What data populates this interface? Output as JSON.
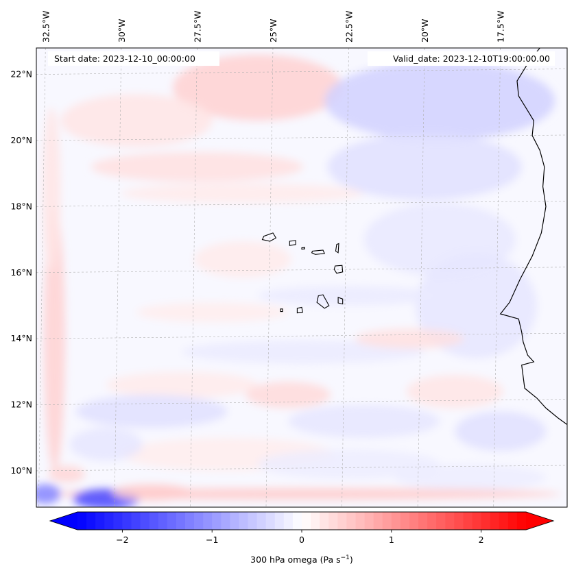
{
  "chart_data": {
    "type": "heatmap",
    "title": "",
    "start_date_label": "Start date: 2023-12-10_00:00:00",
    "valid_date_label": "Valid_date: 2023-12-10T19:00:00.00",
    "variable": "300 hPa omega",
    "units": "Pa s",
    "units_exponent": "−1",
    "colormap": "bwr",
    "value_range": [
      -2.5,
      2.5
    ],
    "extend": "both",
    "lon_ticks": [
      {
        "value": -32.5,
        "label": "32.5°W"
      },
      {
        "value": -30.0,
        "label": "30°W"
      },
      {
        "value": -27.5,
        "label": "27.5°W"
      },
      {
        "value": -25.0,
        "label": "25°W"
      },
      {
        "value": -22.5,
        "label": "22.5°W"
      },
      {
        "value": -20.0,
        "label": "20°W"
      },
      {
        "value": -17.5,
        "label": "17.5°W"
      }
    ],
    "lat_ticks": [
      {
        "value": 22,
        "label": "22°N"
      },
      {
        "value": 20,
        "label": "20°N"
      },
      {
        "value": 18,
        "label": "18°N"
      },
      {
        "value": 16,
        "label": "16°N"
      },
      {
        "value": 14,
        "label": "14°N"
      },
      {
        "value": 12,
        "label": "12°N"
      },
      {
        "value": 10,
        "label": "10°N"
      }
    ],
    "colorbar_ticks": [
      {
        "value": -2,
        "label": "−2"
      },
      {
        "value": -1,
        "label": "−1"
      },
      {
        "value": 0,
        "label": "0"
      },
      {
        "value": 1,
        "label": "1"
      },
      {
        "value": 2,
        "label": "2"
      }
    ],
    "lon_range": [
      -32.8,
      -15.3
    ],
    "lat_range": [
      8.9,
      22.8
    ],
    "field_blobs": [
      {
        "lon": -25.5,
        "lat": 21.6,
        "rlon": 2.8,
        "rlat": 1.0,
        "value": 0.45
      },
      {
        "lon": -29.5,
        "lat": 20.6,
        "rlon": 2.5,
        "rlat": 0.8,
        "value": 0.25
      },
      {
        "lon": -27.5,
        "lat": 19.2,
        "rlon": 3.5,
        "rlat": 0.45,
        "value": 0.3
      },
      {
        "lon": -26.0,
        "lat": 18.4,
        "rlon": 4.0,
        "rlat": 0.3,
        "value": 0.2
      },
      {
        "lon": -19.5,
        "lat": 21.2,
        "rlon": 3.8,
        "rlat": 1.2,
        "value": -0.45
      },
      {
        "lon": -20.0,
        "lat": 19.2,
        "rlon": 3.2,
        "rlat": 1.0,
        "value": -0.3
      },
      {
        "lon": -19.5,
        "lat": 17.0,
        "rlon": 2.5,
        "rlat": 1.1,
        "value": -0.22
      },
      {
        "lon": -18.3,
        "lat": 15.0,
        "rlon": 2.0,
        "rlat": 1.6,
        "value": -0.25
      },
      {
        "lon": -26.0,
        "lat": 16.4,
        "rlon": 1.6,
        "rlat": 0.55,
        "value": 0.2
      },
      {
        "lon": -22.5,
        "lat": 15.3,
        "rlon": 3.0,
        "rlat": 0.3,
        "value": -0.2
      },
      {
        "lon": -27.0,
        "lat": 14.8,
        "rlon": 2.5,
        "rlat": 0.3,
        "value": 0.18
      },
      {
        "lon": -24.0,
        "lat": 13.6,
        "rlon": 4.0,
        "rlat": 0.35,
        "value": -0.2
      },
      {
        "lon": -20.5,
        "lat": 14.0,
        "rlon": 1.8,
        "rlat": 0.3,
        "value": 0.3
      },
      {
        "lon": -28.0,
        "lat": 12.6,
        "rlon": 2.5,
        "rlat": 0.4,
        "value": 0.2
      },
      {
        "lon": -24.5,
        "lat": 12.3,
        "rlon": 1.4,
        "rlat": 0.4,
        "value": 0.35
      },
      {
        "lon": -29.0,
        "lat": 11.8,
        "rlon": 2.5,
        "rlat": 0.5,
        "value": -0.3
      },
      {
        "lon": -22.0,
        "lat": 11.5,
        "rlon": 2.5,
        "rlat": 0.5,
        "value": -0.25
      },
      {
        "lon": -19.0,
        "lat": 12.4,
        "rlon": 1.6,
        "rlat": 0.5,
        "value": 0.25
      },
      {
        "lon": -17.5,
        "lat": 11.2,
        "rlon": 1.5,
        "rlat": 0.6,
        "value": -0.3
      },
      {
        "lon": -26.5,
        "lat": 10.5,
        "rlon": 3.5,
        "rlat": 0.5,
        "value": 0.18
      },
      {
        "lon": -30.5,
        "lat": 10.8,
        "rlon": 1.2,
        "rlat": 0.5,
        "value": -0.25
      },
      {
        "lon": -22.5,
        "lat": 10.2,
        "rlon": 3.0,
        "rlat": 0.45,
        "value": -0.18
      },
      {
        "lon": -18.5,
        "lat": 9.8,
        "rlon": 2.5,
        "rlat": 0.4,
        "value": -0.18
      },
      {
        "lon": -32.2,
        "lat": 14.0,
        "rlon": 0.35,
        "rlat": 4.0,
        "value": 0.45
      },
      {
        "lon": -32.3,
        "lat": 18.5,
        "rlon": 0.3,
        "rlat": 2.5,
        "value": 0.25
      },
      {
        "lon": -24.0,
        "lat": 9.3,
        "rlon": 8.5,
        "rlat": 0.18,
        "value": 0.5
      },
      {
        "lon": -30.5,
        "lat": 9.15,
        "rlon": 1.1,
        "rlat": 0.3,
        "value": -1.8
      },
      {
        "lon": -32.5,
        "lat": 9.3,
        "rlon": 0.5,
        "rlat": 0.3,
        "value": -1.2
      },
      {
        "lon": -31.8,
        "lat": 9.9,
        "rlon": 0.6,
        "rlat": 0.25,
        "value": 0.4
      },
      {
        "lon": -29.0,
        "lat": 9.35,
        "rlon": 1.3,
        "rlat": 0.25,
        "value": 0.5
      }
    ],
    "islands": [
      [
        [
          -25.3,
          17.1
        ],
        [
          -25.0,
          17.2
        ],
        [
          -24.9,
          17.05
        ],
        [
          -25.1,
          16.95
        ],
        [
          -25.35,
          17.0
        ]
      ],
      [
        [
          -24.45,
          16.95
        ],
        [
          -24.25,
          16.97
        ],
        [
          -24.25,
          16.85
        ],
        [
          -24.45,
          16.82
        ]
      ],
      [
        [
          -24.05,
          16.75
        ],
        [
          -23.95,
          16.76
        ],
        [
          -23.95,
          16.72
        ],
        [
          -24.05,
          16.71
        ]
      ],
      [
        [
          -23.7,
          16.65
        ],
        [
          -23.35,
          16.68
        ],
        [
          -23.3,
          16.58
        ],
        [
          -23.6,
          16.55
        ],
        [
          -23.72,
          16.6
        ]
      ],
      [
        [
          -22.9,
          16.85
        ],
        [
          -22.83,
          16.88
        ],
        [
          -22.85,
          16.6
        ],
        [
          -22.93,
          16.65
        ]
      ],
      [
        [
          -22.95,
          16.2
        ],
        [
          -22.72,
          16.22
        ],
        [
          -22.7,
          16.02
        ],
        [
          -22.9,
          15.98
        ],
        [
          -22.98,
          16.1
        ]
      ],
      [
        [
          -23.5,
          15.3
        ],
        [
          -23.35,
          15.33
        ],
        [
          -23.15,
          15.0
        ],
        [
          -23.3,
          14.92
        ],
        [
          -23.55,
          15.1
        ]
      ],
      [
        [
          -22.85,
          15.25
        ],
        [
          -22.7,
          15.2
        ],
        [
          -22.7,
          15.05
        ],
        [
          -22.85,
          15.08
        ]
      ],
      [
        [
          -24.2,
          14.92
        ],
        [
          -24.05,
          14.95
        ],
        [
          -24.02,
          14.8
        ],
        [
          -24.2,
          14.78
        ]
      ],
      [
        [
          -24.75,
          14.9
        ],
        [
          -24.68,
          14.9
        ],
        [
          -24.68,
          14.82
        ],
        [
          -24.75,
          14.82
        ]
      ]
    ],
    "coastline": [
      [
        -16.2,
        22.8
      ],
      [
        -16.55,
        22.4
      ],
      [
        -16.95,
        21.8
      ],
      [
        -16.9,
        21.35
      ],
      [
        -16.6,
        20.9
      ],
      [
        -16.4,
        20.6
      ],
      [
        -16.45,
        20.15
      ],
      [
        -16.2,
        19.7
      ],
      [
        -16.05,
        19.2
      ],
      [
        -16.1,
        18.6
      ],
      [
        -16.0,
        18.0
      ],
      [
        -16.15,
        17.2
      ],
      [
        -16.45,
        16.5
      ],
      [
        -16.85,
        15.8
      ],
      [
        -17.2,
        15.1
      ],
      [
        -17.5,
        14.75
      ],
      [
        -16.9,
        14.6
      ],
      [
        -16.8,
        14.2
      ],
      [
        -16.75,
        13.9
      ],
      [
        -16.6,
        13.5
      ],
      [
        -16.4,
        13.3
      ],
      [
        -16.8,
        13.2
      ],
      [
        -16.7,
        12.5
      ],
      [
        -16.3,
        12.2
      ],
      [
        -16.0,
        11.9
      ],
      [
        -15.6,
        11.6
      ],
      [
        -15.3,
        11.4
      ],
      [
        -15.0,
        11.2
      ]
    ]
  }
}
